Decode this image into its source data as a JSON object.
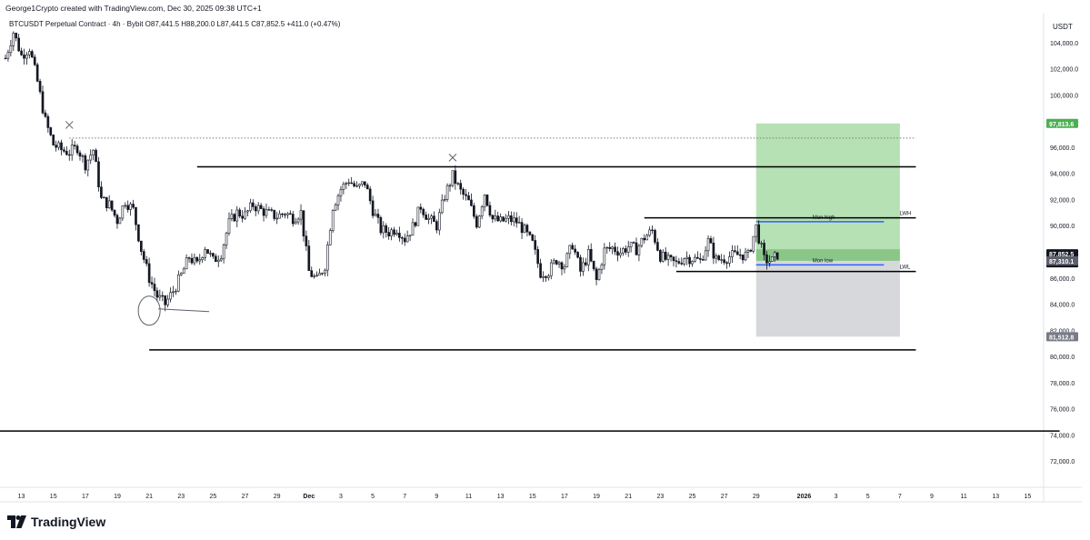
{
  "header": {
    "credit": "George1Crypto created with TradingView.com, Dec 30, 2025 09:38 UTC+1",
    "legend": "BTCUSDT Perpetual Contract · 4h · Bybit  O87,441.5  H88,200.0  L87,441.5  C87,852.5  +411.0 (+0.47%)"
  },
  "brand": {
    "name": "TradingView",
    "logo_icon": "tradingview-logo-icon"
  },
  "chart_data": {
    "type": "candlestick",
    "symbol": "BTCUSDT Perpetual Contract",
    "interval": "4h",
    "exchange": "Bybit",
    "ohlc": {
      "open": 87441.5,
      "high": 88200.0,
      "low": 87441.5,
      "close": 87852.5,
      "change": 411.0,
      "change_pct": 0.47
    },
    "currency_label": "USDT",
    "ylim": [
      70000,
      106000
    ],
    "xlim": [
      "2025-11-12",
      "2026-01-16"
    ],
    "yticks": [
      72000,
      74000,
      76000,
      78000,
      80000,
      82000,
      84000,
      86000,
      88000,
      90000,
      92000,
      94000,
      96000,
      98000,
      100000,
      102000,
      104000
    ],
    "ytick_labels": [
      "72,000.0",
      "74,000.0",
      "76,000.0",
      "78,000.0",
      "80,000.0",
      "82,000.0",
      "84,000.0",
      "86,000.0",
      "88,000.0",
      "90,000.0",
      "92,000.0",
      "94,000.0",
      "96,000.0",
      "98,000.0",
      "100,000.0",
      "102,000.0",
      "104,000.0"
    ],
    "xticks": [
      {
        "date": "2025-11-13",
        "label": "13"
      },
      {
        "date": "2025-11-15",
        "label": "15"
      },
      {
        "date": "2025-11-17",
        "label": "17"
      },
      {
        "date": "2025-11-19",
        "label": "19"
      },
      {
        "date": "2025-11-21",
        "label": "21"
      },
      {
        "date": "2025-11-23",
        "label": "23"
      },
      {
        "date": "2025-11-25",
        "label": "25"
      },
      {
        "date": "2025-11-27",
        "label": "27"
      },
      {
        "date": "2025-11-29",
        "label": "29"
      },
      {
        "date": "2025-12-01",
        "label": "Dec"
      },
      {
        "date": "2025-12-03",
        "label": "3"
      },
      {
        "date": "2025-12-05",
        "label": "5"
      },
      {
        "date": "2025-12-07",
        "label": "7"
      },
      {
        "date": "2025-12-09",
        "label": "9"
      },
      {
        "date": "2025-12-11",
        "label": "11"
      },
      {
        "date": "2025-12-13",
        "label": "13"
      },
      {
        "date": "2025-12-15",
        "label": "15"
      },
      {
        "date": "2025-12-17",
        "label": "17"
      },
      {
        "date": "2025-12-19",
        "label": "19"
      },
      {
        "date": "2025-12-21",
        "label": "21"
      },
      {
        "date": "2025-12-23",
        "label": "23"
      },
      {
        "date": "2025-12-25",
        "label": "25"
      },
      {
        "date": "2025-12-27",
        "label": "27"
      },
      {
        "date": "2025-12-29",
        "label": "29"
      },
      {
        "date": "2026-01-01",
        "label": "2026"
      },
      {
        "date": "2026-01-03",
        "label": "3"
      },
      {
        "date": "2026-01-05",
        "label": "5"
      },
      {
        "date": "2026-01-07",
        "label": "7"
      },
      {
        "date": "2026-01-09",
        "label": "9"
      },
      {
        "date": "2026-01-11",
        "label": "11"
      },
      {
        "date": "2026-01-13",
        "label": "13"
      },
      {
        "date": "2026-01-15",
        "label": "15"
      }
    ],
    "price_path": [
      [
        "2025-11-12T00:00",
        102800
      ],
      [
        "2025-11-12T12:00",
        104800
      ],
      [
        "2025-11-13T00:00",
        103000
      ],
      [
        "2025-11-13T12:00",
        103600
      ],
      [
        "2025-11-14T00:00",
        101000
      ],
      [
        "2025-11-14T12:00",
        98000
      ],
      [
        "2025-11-15T00:00",
        96200
      ],
      [
        "2025-11-15T12:00",
        95800
      ],
      [
        "2025-11-16T00:00",
        95600
      ],
      [
        "2025-11-16T12:00",
        96000
      ],
      [
        "2025-11-17T00:00",
        94700
      ],
      [
        "2025-11-17T12:00",
        95800
      ],
      [
        "2025-11-18T00:00",
        92000
      ],
      [
        "2025-11-18T12:00",
        91600
      ],
      [
        "2025-11-19T00:00",
        90400
      ],
      [
        "2025-11-19T12:00",
        91900
      ],
      [
        "2025-11-20T00:00",
        91200
      ],
      [
        "2025-11-20T12:00",
        88200
      ],
      [
        "2025-11-21T00:00",
        86000
      ],
      [
        "2025-11-21T12:00",
        84600
      ],
      [
        "2025-11-22T00:00",
        84000
      ],
      [
        "2025-11-22T12:00",
        85000
      ],
      [
        "2025-11-23T00:00",
        86200
      ],
      [
        "2025-11-23T12:00",
        87600
      ],
      [
        "2025-11-24T00:00",
        87000
      ],
      [
        "2025-11-24T12:00",
        88400
      ],
      [
        "2025-11-25T00:00",
        87300
      ],
      [
        "2025-11-25T12:00",
        87900
      ],
      [
        "2025-11-26T00:00",
        90200
      ],
      [
        "2025-11-26T12:00",
        91000
      ],
      [
        "2025-11-27T00:00",
        90800
      ],
      [
        "2025-11-27T12:00",
        91600
      ],
      [
        "2025-11-28T00:00",
        91200
      ],
      [
        "2025-11-28T12:00",
        90900
      ],
      [
        "2025-11-29T00:00",
        90700
      ],
      [
        "2025-11-29T12:00",
        91000
      ],
      [
        "2025-11-30T00:00",
        90600
      ],
      [
        "2025-11-30T12:00",
        91000
      ],
      [
        "2025-12-01T00:00",
        86500
      ],
      [
        "2025-12-01T12:00",
        85800
      ],
      [
        "2025-12-02T00:00",
        87000
      ],
      [
        "2025-12-02T12:00",
        91500
      ],
      [
        "2025-12-03T00:00",
        92800
      ],
      [
        "2025-12-03T12:00",
        93500
      ],
      [
        "2025-12-04T00:00",
        92800
      ],
      [
        "2025-12-04T12:00",
        93300
      ],
      [
        "2025-12-05T00:00",
        91200
      ],
      [
        "2025-12-05T12:00",
        89700
      ],
      [
        "2025-12-06T00:00",
        89500
      ],
      [
        "2025-12-06T12:00",
        89800
      ],
      [
        "2025-12-07T00:00",
        89000
      ],
      [
        "2025-12-07T12:00",
        89900
      ],
      [
        "2025-12-08T00:00",
        91500
      ],
      [
        "2025-12-08T12:00",
        90500
      ],
      [
        "2025-12-09T00:00",
        90000
      ],
      [
        "2025-12-09T12:00",
        92300
      ],
      [
        "2025-12-10T00:00",
        93800
      ],
      [
        "2025-12-10T12:00",
        92600
      ],
      [
        "2025-12-11T00:00",
        91800
      ],
      [
        "2025-12-11T12:00",
        90200
      ],
      [
        "2025-12-12T00:00",
        92500
      ],
      [
        "2025-12-12T12:00",
        90500
      ],
      [
        "2025-12-13T00:00",
        90300
      ],
      [
        "2025-12-13T12:00",
        90500
      ],
      [
        "2025-12-14T00:00",
        90300
      ],
      [
        "2025-12-14T12:00",
        89600
      ],
      [
        "2025-12-15T00:00",
        88600
      ],
      [
        "2025-12-15T12:00",
        86400
      ],
      [
        "2025-12-16T00:00",
        86500
      ],
      [
        "2025-12-16T12:00",
        87400
      ],
      [
        "2025-12-17T00:00",
        87000
      ],
      [
        "2025-12-17T12:00",
        88600
      ],
      [
        "2025-12-18T00:00",
        86500
      ],
      [
        "2025-12-18T12:00",
        87800
      ],
      [
        "2025-12-19T00:00",
        85800
      ],
      [
        "2025-12-19T12:00",
        88100
      ],
      [
        "2025-12-20T00:00",
        88300
      ],
      [
        "2025-12-20T12:00",
        88000
      ],
      [
        "2025-12-21T00:00",
        88400
      ],
      [
        "2025-12-21T12:00",
        88200
      ],
      [
        "2025-12-22T00:00",
        89100
      ],
      [
        "2025-12-22T12:00",
        89600
      ],
      [
        "2025-12-23T00:00",
        87700
      ],
      [
        "2025-12-23T12:00",
        87300
      ],
      [
        "2025-12-24T00:00",
        87100
      ],
      [
        "2025-12-24T12:00",
        87600
      ],
      [
        "2025-12-25T00:00",
        87500
      ],
      [
        "2025-12-25T12:00",
        87300
      ],
      [
        "2025-12-26T00:00",
        88800
      ],
      [
        "2025-12-26T12:00",
        87400
      ],
      [
        "2025-12-27T00:00",
        87500
      ],
      [
        "2025-12-27T12:00",
        87700
      ],
      [
        "2025-12-28T00:00",
        87800
      ],
      [
        "2025-12-28T12:00",
        87700
      ],
      [
        "2025-12-29T00:00",
        89900
      ],
      [
        "2025-12-29T12:00",
        87400
      ],
      [
        "2025-12-30T00:00",
        87300
      ],
      [
        "2025-12-30T09:00",
        87852.5
      ]
    ],
    "horizontal_levels": [
      {
        "name": "range-high",
        "price": 94500,
        "from": "2025-11-24",
        "to": "2026-01-08"
      },
      {
        "name": "range-low",
        "price": 80500,
        "from": "2025-11-21",
        "to": "2026-01-08"
      },
      {
        "name": "lower-support",
        "price": 74300,
        "from": "2025-11-11",
        "to": "2026-01-17"
      },
      {
        "name": "lwh-line",
        "price": 90600,
        "from": "2025-12-22",
        "to": "2026-01-08",
        "label": "LWH"
      },
      {
        "name": "lwl-line",
        "price": 86500,
        "from": "2025-12-24",
        "to": "2026-01-08",
        "label": "LWL"
      },
      {
        "name": "mon-high-line",
        "price": 90300,
        "from": "2025-12-29",
        "to": "2026-01-06",
        "label": "Mon high"
      },
      {
        "name": "mon-low-line",
        "price": 87000,
        "from": "2025-12-29",
        "to": "2026-01-06",
        "label": "Mon low"
      }
    ],
    "dotted_level": {
      "price": 96700,
      "from": "2025-11-16",
      "to": "2026-01-08"
    },
    "position": {
      "type": "long",
      "from": "2025-12-29",
      "to": "2026-01-07",
      "target": 97813.6,
      "entry": 87310.1,
      "stop": 81512.8,
      "target_color": "#a9dca7",
      "stop_color": "#d5d6d9"
    },
    "cross_marks": [
      {
        "date": "2025-11-16",
        "price": 97700
      },
      {
        "date": "2025-12-10",
        "price": 95200
      }
    ],
    "ellipse_mark": {
      "date": "2025-11-21",
      "price": 83500
    },
    "price_labels": [
      {
        "text": "97,813.6",
        "price": 97813.6,
        "bg": "#4caf50",
        "fg": "#ffffff"
      },
      {
        "text": "87,852.5",
        "price": 87852.5,
        "bg": "#131722",
        "fg": "#ffffff",
        "sub": "03:21:28"
      },
      {
        "text": "87,310.1",
        "price": 87310.1,
        "bg": "#5d606b",
        "fg": "#ffffff"
      },
      {
        "text": "81,512.8",
        "price": 81512.8,
        "bg": "#787b86",
        "fg": "#ffffff"
      }
    ],
    "colors": {
      "up": "#131722",
      "down": "#131722",
      "level": "#000000",
      "blue_level": "#2962ff"
    }
  }
}
